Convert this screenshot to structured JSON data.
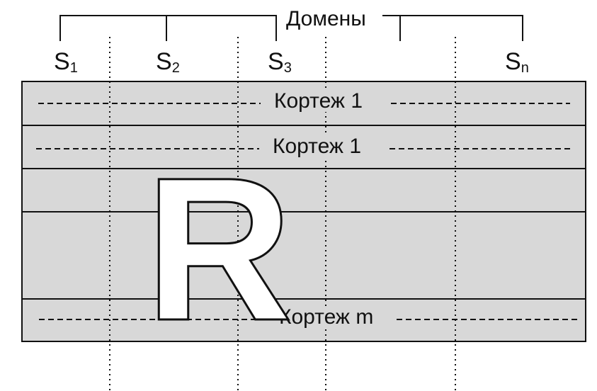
{
  "diagram": {
    "domains_title": "Домены",
    "domain_labels": [
      {
        "name": "S",
        "subscript": "1"
      },
      {
        "name": "S",
        "subscript": "2"
      },
      {
        "name": "S",
        "subscript": "3"
      },
      {
        "name": "S",
        "subscript": "n"
      }
    ],
    "tuple_labels": [
      "Кортеж 1",
      "Кортеж 1",
      "Кортеж m"
    ],
    "relation_name": "R",
    "colors": {
      "table_fill": "#d8d8d8",
      "line_color": "#111111",
      "background": "#ffffff",
      "letter_fill": "#ffffff"
    }
  }
}
